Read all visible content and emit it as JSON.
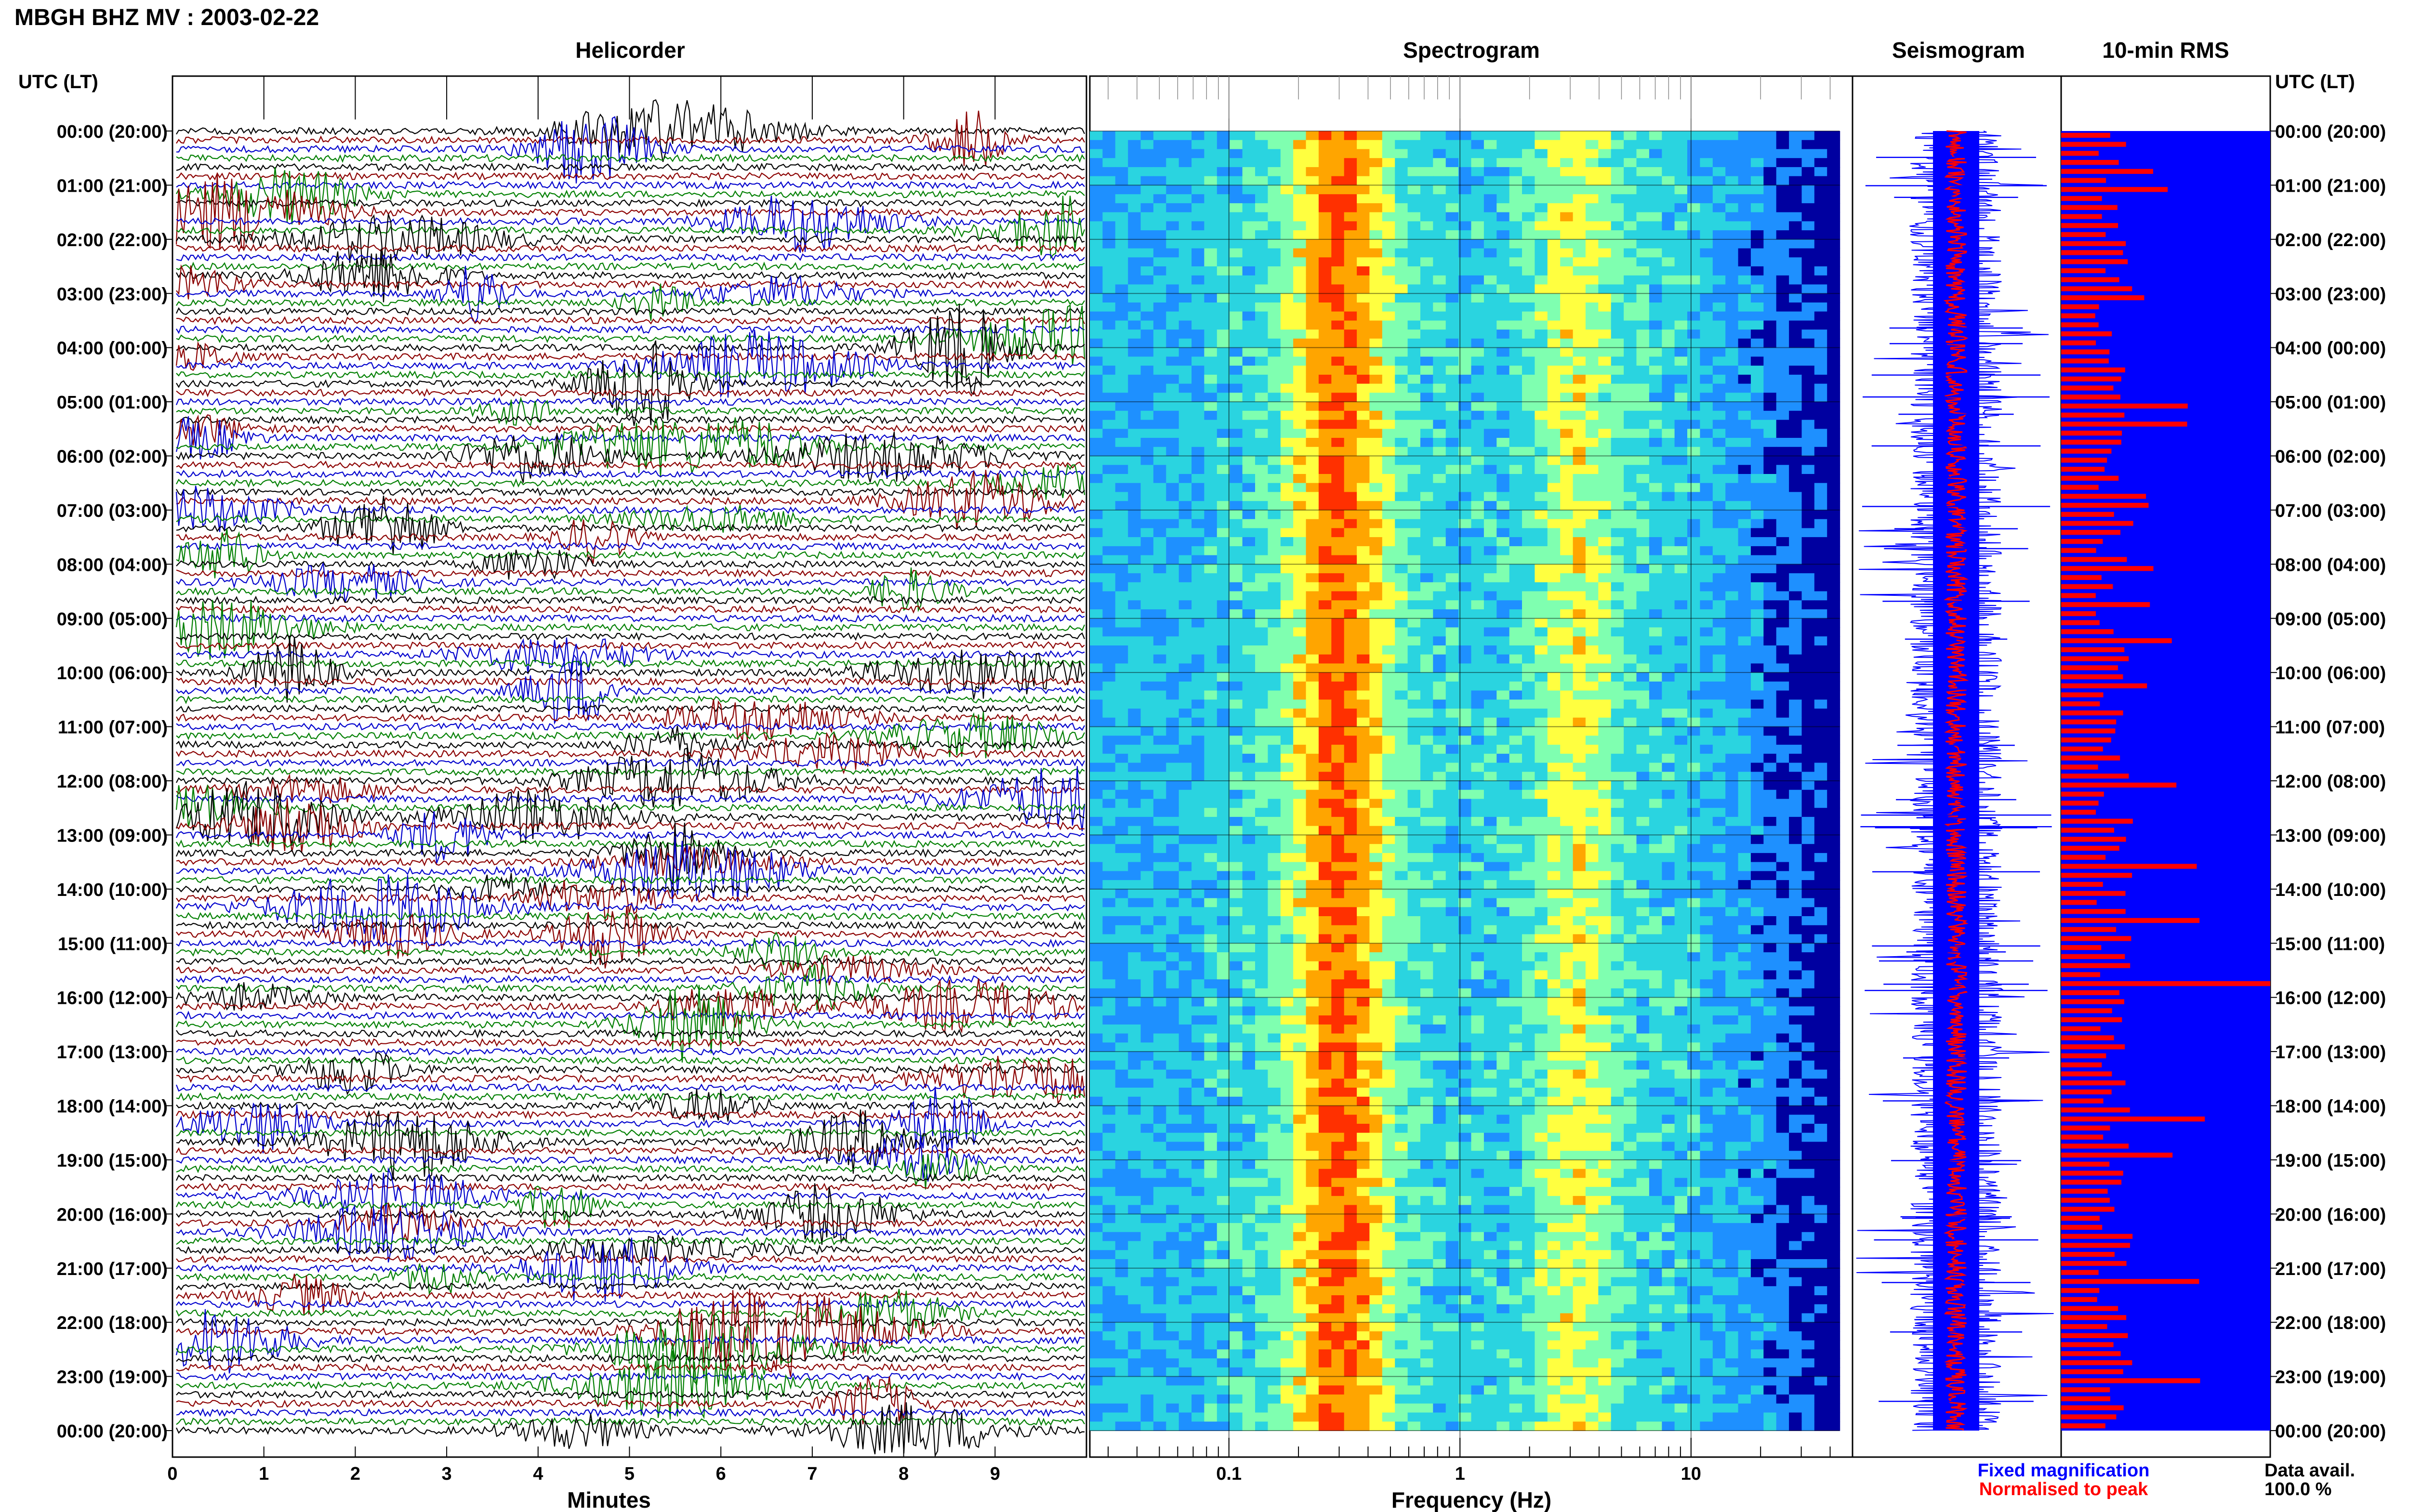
{
  "page_title": "MBGH BHZ MV : 2003-02-22",
  "chart_data": [
    {
      "type": "helicorder",
      "title": "Helicorder",
      "xlabel": "Minutes",
      "ylabel_left": "UTC (LT)",
      "xlim": [
        0,
        10
      ],
      "x_ticks": [
        "0",
        "1",
        "2",
        "3",
        "4",
        "5",
        "6",
        "7",
        "8",
        "9"
      ],
      "traces_per_hour": 6,
      "hours": 24,
      "trace_colors": [
        "#000000",
        "#8b0000",
        "#0000cd",
        "#007f00"
      ]
    },
    {
      "type": "heatmap",
      "title": "Spectrogram",
      "xlabel": "Frequency (Hz)",
      "x_scale": "log",
      "xlim": [
        0.025,
        50
      ],
      "x_ticks": [
        "0.1",
        "1",
        "10"
      ],
      "dominant_band_hz": [
        0.2,
        0.45
      ],
      "secondary_band_hz": [
        2,
        5
      ],
      "colormap": [
        "#0000a0",
        "#1e90ff",
        "#2ad4e0",
        "#7fffb0",
        "#ffff40",
        "#ffa500",
        "#ff3000"
      ]
    },
    {
      "type": "line",
      "title": "Seismogram",
      "legend": [
        {
          "label": "Fixed magnification",
          "color": "#0000ff"
        },
        {
          "label": "Normalised to peak",
          "color": "#ff0000"
        }
      ]
    },
    {
      "type": "bar",
      "title": "10-min RMS",
      "colors": {
        "background": "#0000ff",
        "bar": "#ff0000"
      }
    }
  ],
  "time_axis": {
    "left_header": "UTC (LT)",
    "right_header": "UTC (LT)",
    "labels": [
      "00:00 (20:00)",
      "01:00 (21:00)",
      "02:00 (22:00)",
      "03:00 (23:00)",
      "04:00 (00:00)",
      "05:00 (01:00)",
      "06:00 (02:00)",
      "07:00 (03:00)",
      "08:00 (04:00)",
      "09:00 (05:00)",
      "10:00 (06:00)",
      "11:00 (07:00)",
      "12:00 (08:00)",
      "13:00 (09:00)",
      "14:00 (10:00)",
      "15:00 (11:00)",
      "16:00 (12:00)",
      "17:00 (13:00)",
      "18:00 (14:00)",
      "19:00 (15:00)",
      "20:00 (16:00)",
      "21:00 (17:00)",
      "22:00 (18:00)",
      "23:00 (19:00)",
      "00:00 (20:00)"
    ]
  },
  "legend": {
    "fixed_label": "Fixed magnification",
    "fixed_color": "#0000ff",
    "normalised_label": "Normalised to peak",
    "normalised_color": "#ff0000"
  },
  "availability": {
    "label": "Data avail.",
    "value": "100.0 %"
  }
}
